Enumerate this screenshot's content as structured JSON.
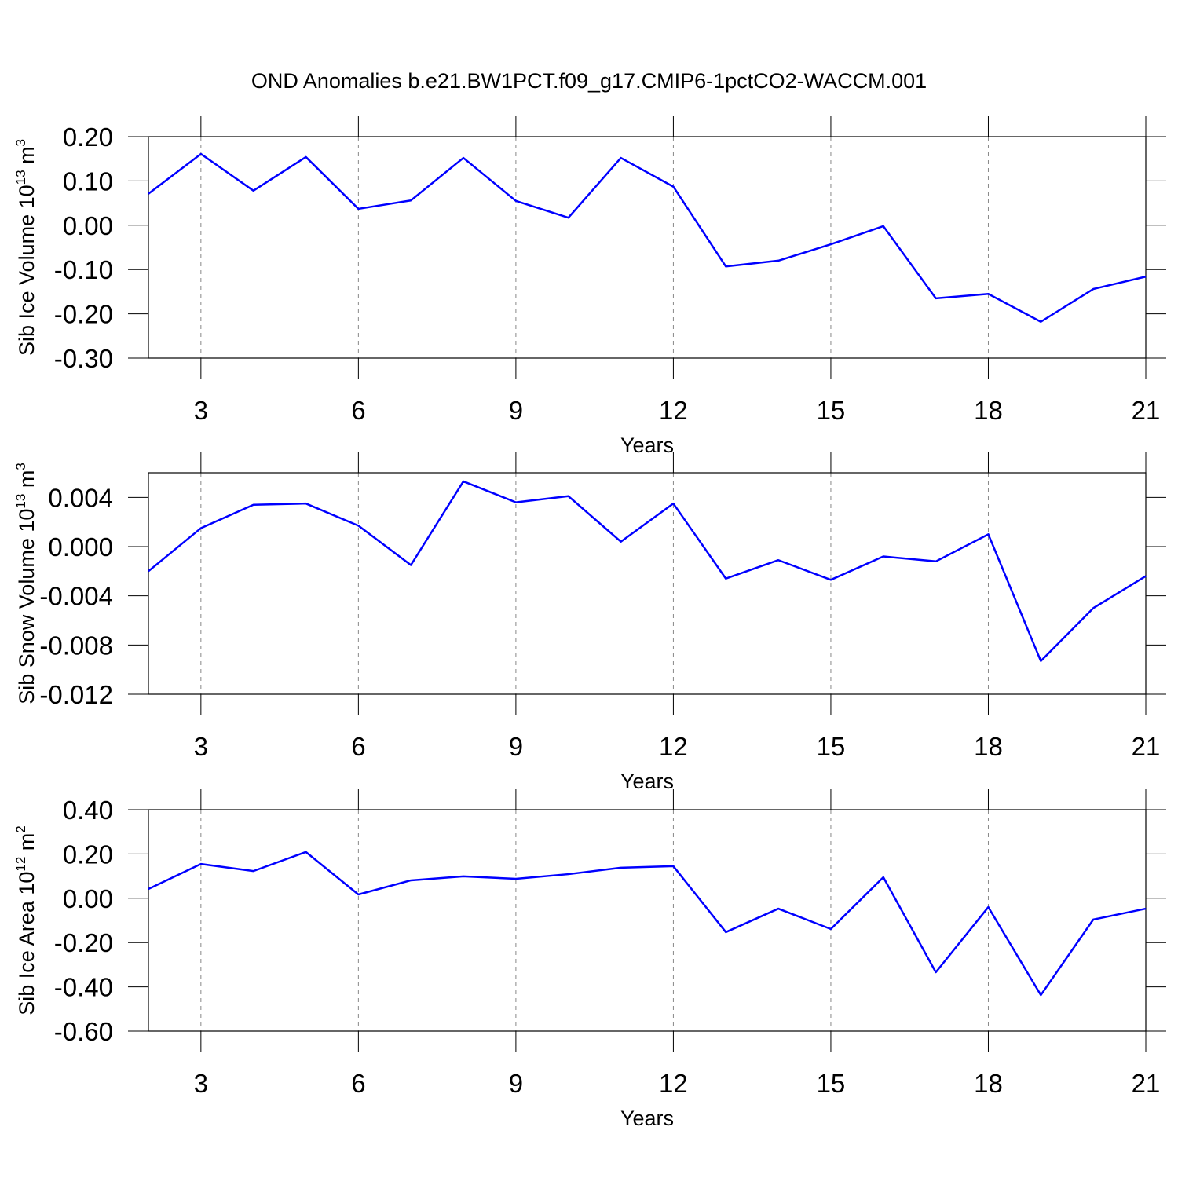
{
  "chart_data": [
    {
      "type": "line",
      "title": "OND Anomalies b.e21.BW1PCT.f09_g17.CMIP6-1pctCO2-WACCM.001",
      "ylabel": {
        "text": "Sib Ice Volume 10",
        "exponent": "13",
        "unit": " m",
        "unit_exponent": "3"
      },
      "xlabel": "Years",
      "x": [
        2,
        3,
        4,
        5,
        6,
        7,
        8,
        9,
        10,
        11,
        12,
        13,
        14,
        15,
        16,
        17,
        18,
        19,
        20,
        21
      ],
      "series": [
        {
          "color": "#0000ff",
          "values": [
            0.071,
            0.161,
            0.078,
            0.154,
            0.037,
            0.056,
            0.152,
            0.055,
            0.017,
            0.152,
            0.087,
            -0.093,
            -0.08,
            -0.043,
            -0.002,
            -0.165,
            -0.155,
            -0.218,
            -0.144,
            -0.116
          ]
        }
      ],
      "xlim": [
        2,
        21
      ],
      "xticks": [
        3,
        6,
        9,
        12,
        15,
        18,
        21
      ],
      "ylim": [
        -0.3,
        0.2
      ],
      "yticks": [
        {
          "value": -0.3,
          "label": "-0.30"
        },
        {
          "value": -0.2,
          "label": "-0.20"
        },
        {
          "value": -0.1,
          "label": "-0.10"
        },
        {
          "value": 0,
          "label": "0.00"
        },
        {
          "value": 0.1,
          "label": "0.10"
        },
        {
          "value": 0.2,
          "label": "0.20"
        }
      ],
      "grid": "x"
    },
    {
      "type": "line",
      "ylabel": {
        "text": "Sib Snow Volume 10",
        "exponent": "13",
        "unit": " m",
        "unit_exponent": "3"
      },
      "xlabel": "Years",
      "x": [
        2,
        3,
        4,
        5,
        6,
        7,
        8,
        9,
        10,
        11,
        12,
        13,
        14,
        15,
        16,
        17,
        18,
        19,
        20,
        21
      ],
      "series": [
        {
          "color": "#0000ff",
          "values": [
            -0.002,
            0.0015,
            0.0034,
            0.0035,
            0.0017,
            -0.0015,
            0.0053,
            0.0036,
            0.0041,
            0.0004,
            0.0035,
            -0.0026,
            -0.0011,
            -0.0027,
            -0.0008,
            -0.0012,
            0.001,
            -0.0093,
            -0.005,
            -0.0024
          ]
        }
      ],
      "xlim": [
        2,
        21
      ],
      "xticks": [
        3,
        6,
        9,
        12,
        15,
        18,
        21
      ],
      "ylim": [
        -0.012,
        0.006
      ],
      "yticks": [
        {
          "value": -0.012,
          "label": "-0.012"
        },
        {
          "value": -0.008,
          "label": "-0.008"
        },
        {
          "value": -0.004,
          "label": "-0.004"
        },
        {
          "value": 0,
          "label": "0.000"
        },
        {
          "value": 0.004,
          "label": "0.004"
        }
      ],
      "grid": "x"
    },
    {
      "type": "line",
      "ylabel": {
        "text": "Sib Ice Area 10",
        "exponent": "12",
        "unit": " m",
        "unit_exponent": "2"
      },
      "xlabel": "Years",
      "x": [
        2,
        3,
        4,
        5,
        6,
        7,
        8,
        9,
        10,
        11,
        12,
        13,
        14,
        15,
        16,
        17,
        18,
        19,
        20,
        21
      ],
      "series": [
        {
          "color": "#0000ff",
          "values": [
            0.042,
            0.155,
            0.123,
            0.209,
            0.017,
            0.081,
            0.099,
            0.088,
            0.109,
            0.138,
            0.145,
            -0.153,
            -0.047,
            -0.139,
            0.095,
            -0.334,
            -0.04,
            -0.437,
            -0.096,
            -0.047
          ]
        }
      ],
      "xlim": [
        2,
        21
      ],
      "xticks": [
        3,
        6,
        9,
        12,
        15,
        18,
        21
      ],
      "ylim": [
        -0.6,
        0.4
      ],
      "yticks": [
        {
          "value": -0.6,
          "label": "-0.60"
        },
        {
          "value": -0.4,
          "label": "-0.40"
        },
        {
          "value": -0.2,
          "label": "-0.20"
        },
        {
          "value": 0,
          "label": "0.00"
        },
        {
          "value": 0.2,
          "label": "0.20"
        },
        {
          "value": 0.4,
          "label": "0.40"
        }
      ],
      "grid": "x"
    }
  ]
}
